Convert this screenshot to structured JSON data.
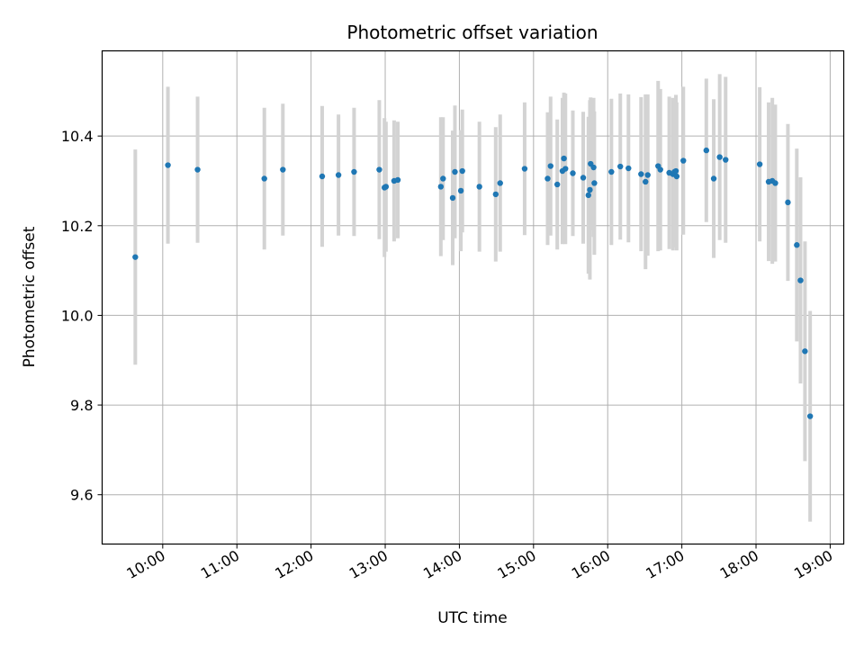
{
  "chart_data": {
    "type": "scatter",
    "title": "Photometric offset variation",
    "xlabel": "UTC time",
    "ylabel": "Photometric offset",
    "x_tick_labels": [
      "10:00",
      "11:00",
      "12:00",
      "13:00",
      "14:00",
      "15:00",
      "16:00",
      "17:00",
      "18:00",
      "19:00"
    ],
    "y_tick_labels": [
      "9.6",
      "9.8",
      "10.0",
      "10.2",
      "10.4"
    ],
    "x_ticks_hours": [
      10,
      11,
      12,
      13,
      14,
      15,
      16,
      17,
      18,
      19
    ],
    "y_ticks": [
      9.6,
      9.8,
      10.0,
      10.2,
      10.4
    ],
    "xlim_hours": [
      9.183,
      19.183
    ],
    "ylim": [
      9.49,
      10.59
    ],
    "grid": true,
    "colors": {
      "point": "#1f77b4",
      "errorbar": "#d3d3d3",
      "grid": "#b0b0b0"
    },
    "series": [
      {
        "time_hours": [
          9.63,
          10.07,
          10.47,
          11.37,
          11.62,
          12.15,
          12.37,
          12.58,
          12.92,
          12.99,
          13.01,
          13.12,
          13.17,
          13.75,
          13.78,
          13.91,
          13.94,
          14.02,
          14.04,
          14.27,
          14.49,
          14.55,
          14.88,
          15.19,
          15.23,
          15.32,
          15.39,
          15.41,
          15.43,
          15.53,
          15.67,
          15.74,
          15.76,
          15.77,
          15.81,
          15.82,
          16.05,
          16.17,
          16.28,
          16.45,
          16.51,
          16.54,
          16.68,
          16.71,
          16.83,
          16.88,
          16.9,
          16.92,
          16.93,
          17.02,
          17.33,
          17.43,
          17.51,
          17.59,
          18.05,
          18.17,
          18.22,
          18.26,
          18.43,
          18.55,
          18.6,
          18.66,
          18.73
        ],
        "values": [
          10.13,
          10.335,
          10.325,
          10.305,
          10.325,
          10.31,
          10.313,
          10.32,
          10.325,
          10.285,
          10.287,
          10.3,
          10.302,
          10.287,
          10.305,
          10.262,
          10.32,
          10.278,
          10.322,
          10.287,
          10.27,
          10.295,
          10.327,
          10.305,
          10.333,
          10.292,
          10.322,
          10.35,
          10.327,
          10.317,
          10.307,
          10.268,
          10.28,
          10.338,
          10.33,
          10.295,
          10.32,
          10.332,
          10.328,
          10.315,
          10.298,
          10.313,
          10.333,
          10.325,
          10.318,
          10.315,
          10.32,
          10.322,
          10.31,
          10.345,
          10.368,
          10.305,
          10.353,
          10.347,
          10.337,
          10.298,
          10.3,
          10.295,
          10.252,
          10.157,
          10.078,
          9.92,
          9.775
        ],
        "errors": [
          0.24,
          0.175,
          0.163,
          0.158,
          0.147,
          0.157,
          0.135,
          0.143,
          0.155,
          0.155,
          0.145,
          0.135,
          0.13,
          0.155,
          0.137,
          0.15,
          0.148,
          0.135,
          0.137,
          0.145,
          0.15,
          0.153,
          0.148,
          0.148,
          0.155,
          0.145,
          0.163,
          0.147,
          0.168,
          0.14,
          0.147,
          0.175,
          0.2,
          0.148,
          0.155,
          0.16,
          0.163,
          0.163,
          0.165,
          0.172,
          0.195,
          0.18,
          0.19,
          0.18,
          0.17,
          0.17,
          0.16,
          0.17,
          0.165,
          0.165,
          0.16,
          0.177,
          0.185,
          0.185,
          0.172,
          0.177,
          0.185,
          0.175,
          0.175,
          0.215,
          0.23,
          0.245,
          0.235
        ]
      }
    ]
  }
}
